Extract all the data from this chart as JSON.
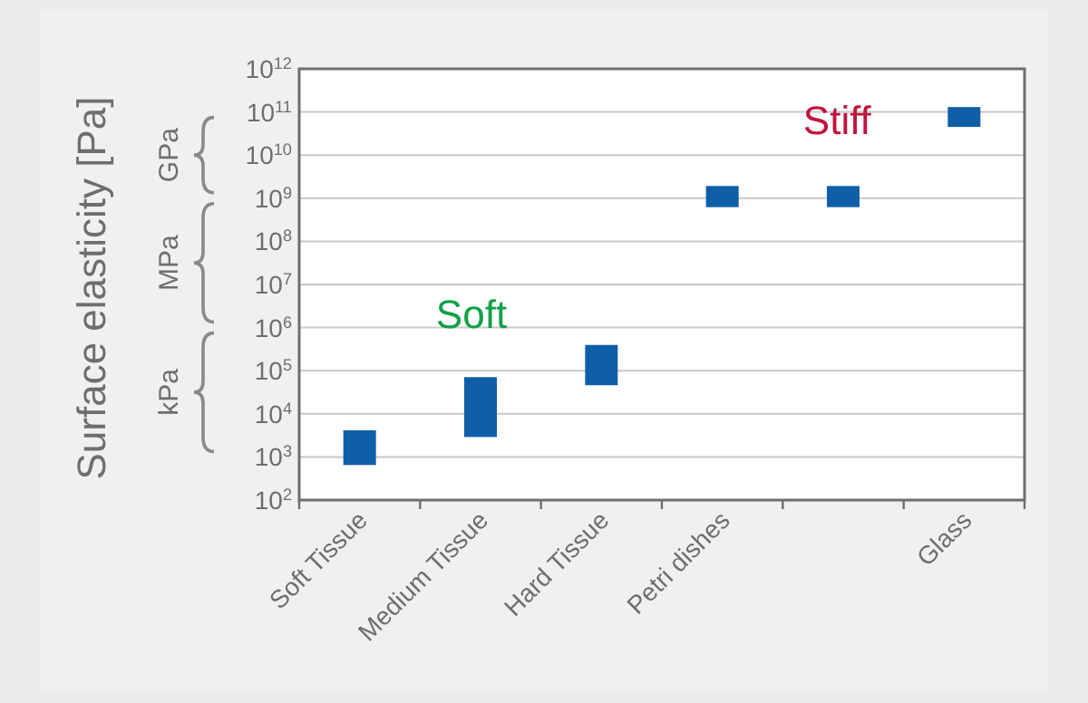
{
  "chart_data": {
    "type": "bar",
    "ylabel": "Surface elasticity [Pa]",
    "categories": [
      "Soft Tissue",
      "Medium Tissue",
      "Hard Tissue",
      "Petri dishes",
      null,
      "Glass"
    ],
    "base": [
      650,
      2900,
      46000,
      620000000,
      620000000,
      45000000000
    ],
    "values": [
      3500,
      68000,
      350000,
      1300000000,
      1300000000,
      85000000000
    ],
    "color": "#0f5fa8",
    "log": true,
    "grid": "y",
    "ylim": [
      100,
      1000000000000
    ],
    "yticks": [
      {
        "value": 100,
        "label": "10$^{2}$"
      },
      {
        "value": 1000,
        "label": "10$^{3}$"
      },
      {
        "value": 10000,
        "label": "10$^{4}$"
      },
      {
        "value": 100000,
        "label": "10$^{5}$"
      },
      {
        "value": 1000000,
        "label": "10$^{6}$"
      },
      {
        "value": 10000000,
        "label": "10$^{7}$"
      },
      {
        "value": 100000000,
        "label": "10$^{8}$"
      },
      {
        "value": 1000000000,
        "label": "10$^{9}$"
      },
      {
        "value": 10000000000,
        "label": "10$^{10}$"
      },
      {
        "value": 100000000000,
        "label": "10$^{11}$"
      },
      {
        "value": 1000000000000,
        "label": "10$^{12}$"
      }
    ],
    "annotations": [
      "Soft",
      "Stiff",
      "kPa",
      "MPa",
      "GPa"
    ]
  }
}
